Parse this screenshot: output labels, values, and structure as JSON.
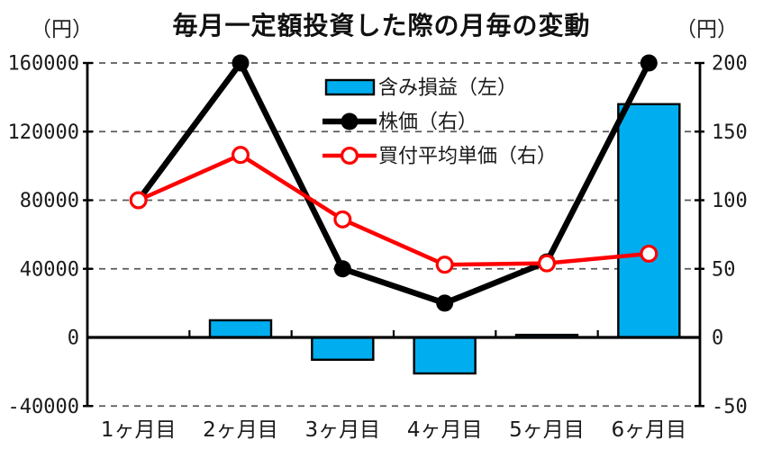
{
  "title": "毎月一定額投資した際の月毎の変動",
  "left_axis_unit": "（円）",
  "right_axis_unit": "（円）",
  "colors": {
    "bar_fill": "#00AEEF",
    "stock_line": "#000000",
    "avg_price_line": "#FF0000",
    "grid": "#595959",
    "axis": "#000000",
    "marker_open_fill": "#FFFFFF"
  },
  "chart_data": {
    "type": "combo (bar + line, dual axis)",
    "title": "毎月一定額投資した際の月毎の変動",
    "categories": [
      "1ヶ月目",
      "2ヶ月目",
      "3ヶ月目",
      "4ヶ月目",
      "5ヶ月目",
      "6ヶ月目"
    ],
    "series": [
      {
        "name": "含み損益（左）",
        "type": "bar",
        "axis": "left",
        "color": "#00AEEF",
        "values": [
          0,
          10000,
          -13000,
          -21000,
          1500,
          136000
        ]
      },
      {
        "name": "株価（右）",
        "type": "line",
        "axis": "right",
        "color": "#000000",
        "marker": "filled-circle",
        "values": [
          100,
          200,
          50,
          25,
          55,
          200
        ]
      },
      {
        "name": "買付平均単価（右）",
        "type": "line",
        "axis": "right",
        "color": "#FF0000",
        "marker": "open-circle",
        "values": [
          100,
          133,
          86,
          53,
          54,
          61
        ]
      }
    ],
    "left_axis": {
      "unit": "（円）",
      "min": -40000,
      "max": 160000,
      "step": 40000,
      "tick_labels": [
        "160000",
        "120000",
        "80000",
        "40000",
        "0",
        "-40000"
      ]
    },
    "right_axis": {
      "unit": "（円）",
      "min": -50,
      "max": 200,
      "step": 50,
      "tick_labels": [
        "200",
        "150",
        "100",
        "50",
        "0",
        "-50"
      ]
    },
    "grid": "horizontal dashed",
    "legend_position": "inside top-center"
  }
}
